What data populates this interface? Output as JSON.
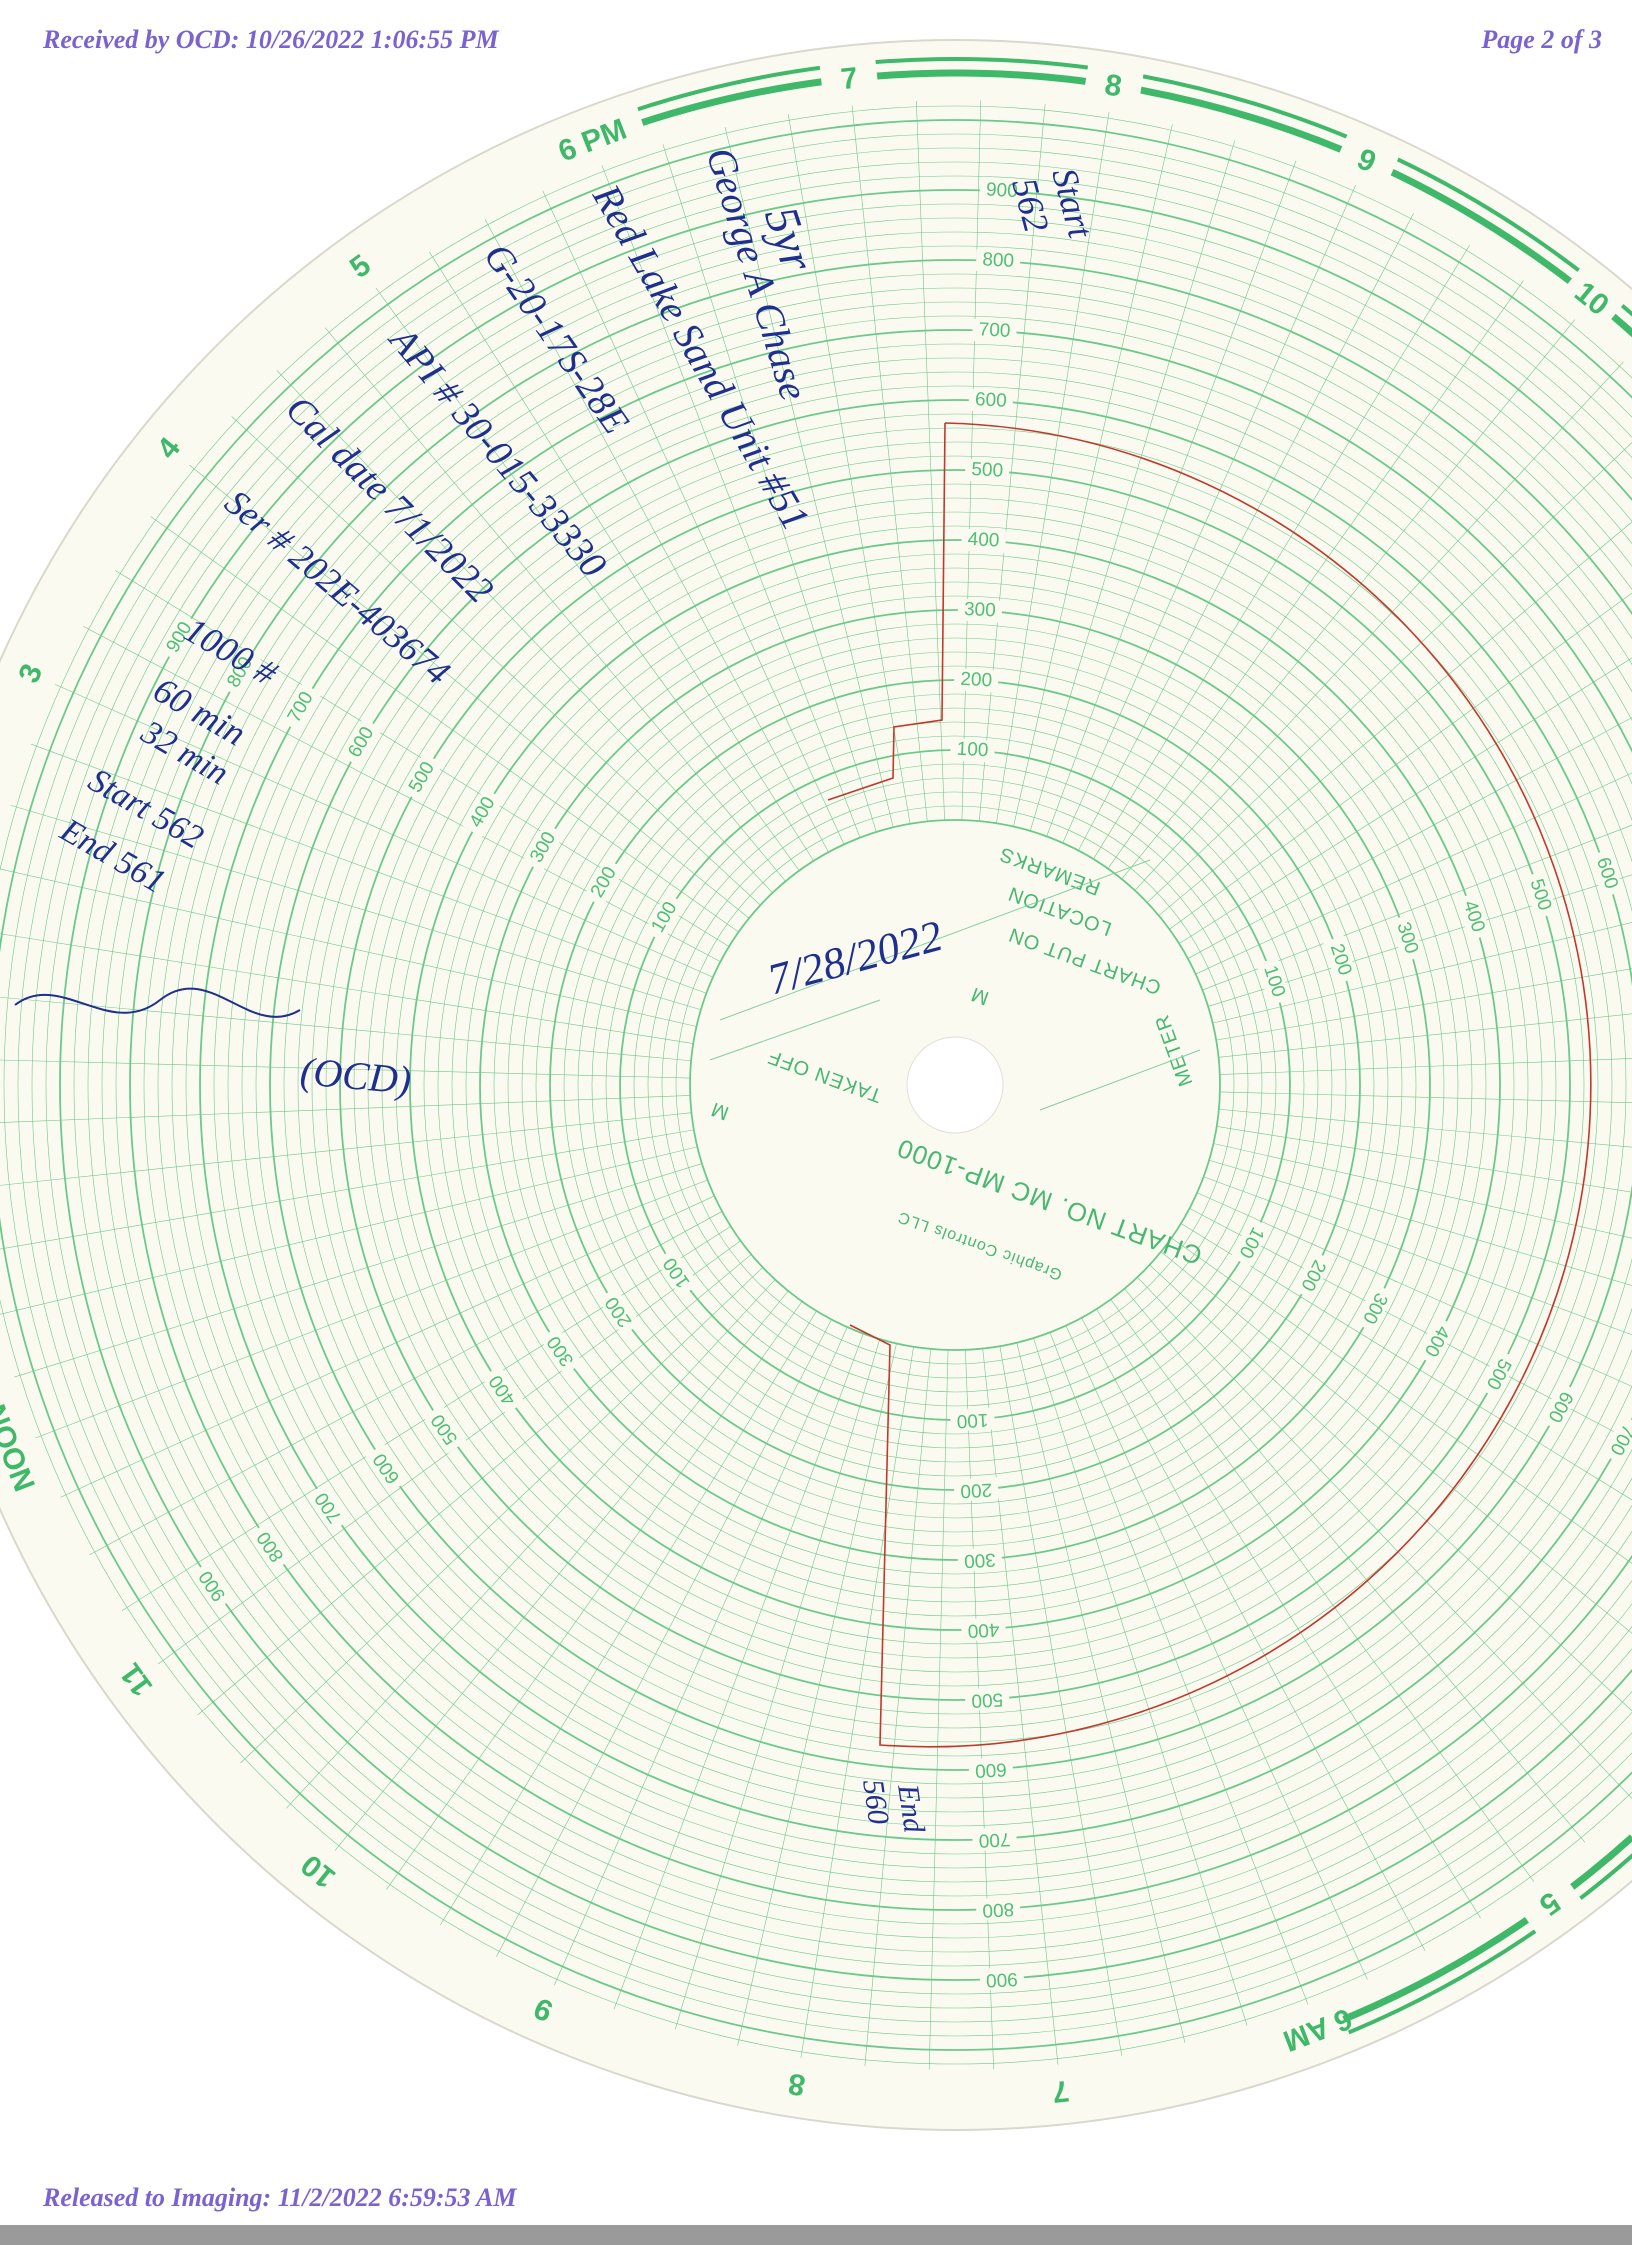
{
  "header": {
    "received": "Received by OCD: 10/26/2022 1:06:55 PM",
    "page": "Page 2 of 3"
  },
  "footer": {
    "released": "Released to Imaging: 11/2/2022 6:59:53 AM"
  },
  "chart_plate": {
    "hours": [
      "7",
      "8",
      "9",
      "10",
      null,
      null,
      null,
      null,
      null,
      null,
      "5",
      "6 AM",
      "7",
      "8",
      "9",
      "10",
      "11",
      "NOON",
      null,
      null,
      "3",
      "4",
      "5",
      "6 PM"
    ],
    "scale": [
      100,
      200,
      300,
      400,
      500,
      600,
      700,
      800,
      900
    ],
    "center": {
      "chart_no": "CHART NO. MC MP-1000",
      "meter": "METER",
      "chart_put_on": "CHART PUT ON",
      "m1": "M",
      "location": "LOCATION",
      "remarks": "REMARKS",
      "taken_off": "TAKEN OFF",
      "m2": "M",
      "maker": "Graphic Controls LLC"
    }
  },
  "handwriting": {
    "lines": [
      "5yr",
      "George A Chase",
      "Red Lake Sand Unit #51",
      "G-20-17S-28E",
      "API # 30-015-33330",
      "Cal date 7/1/2022",
      "Ser # 202E-403674",
      "1000 #",
      "60 min",
      "32 min",
      "Start 562",
      "End 561",
      "(OCD)",
      "7/28/2022",
      "Start",
      "562",
      "End",
      "560"
    ]
  }
}
